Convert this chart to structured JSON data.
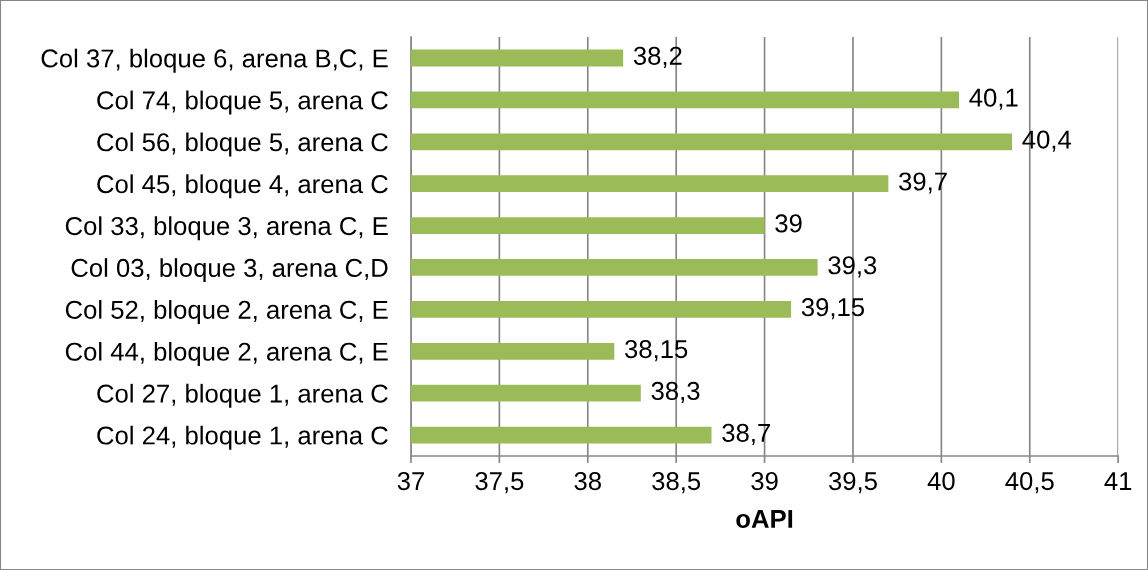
{
  "chart_data": {
    "type": "bar",
    "orientation": "horizontal",
    "xlabel": "oAPI",
    "categories": [
      "Col 37, bloque 6, arena B,C, E",
      "Col 74, bloque 5, arena C",
      "Col 56, bloque 5, arena C",
      "Col 45, bloque 4, arena C",
      "Col 33, bloque 3, arena C, E",
      "Col 03, bloque 3, arena C,D",
      "Col 52, bloque 2, arena C, E",
      "Col 44, bloque 2, arena C, E",
      "Col 27, bloque 1, arena C",
      "Col 24, bloque 1, arena C"
    ],
    "values": [
      38.2,
      40.1,
      40.4,
      39.7,
      39,
      39.3,
      39.15,
      38.15,
      38.3,
      38.7
    ],
    "value_labels": [
      "38,2",
      "40,1",
      "40,4",
      "39,7",
      "39",
      "39,3",
      "39,15",
      "38,15",
      "38,3",
      "38,7"
    ],
    "color": "#9bbb59",
    "xlim": [
      37,
      41
    ],
    "xticks": [
      37,
      {
        "value": 37.5,
        "label": "37,5"
      },
      38,
      {
        "value": 38.5,
        "label": "38,5"
      },
      39,
      {
        "value": 39.5,
        "label": "39,5"
      },
      40,
      {
        "value": 40.5,
        "label": "40,5"
      },
      41
    ],
    "grid": "x",
    "legend": false
  }
}
